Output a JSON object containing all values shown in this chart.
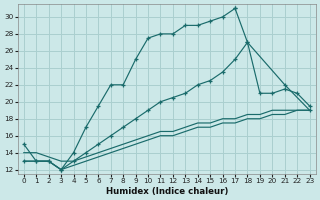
{
  "bg_color": "#cce8e8",
  "line_color": "#1a6b6b",
  "grid_color": "#aacfcf",
  "xlabel": "Humidex (Indice chaleur)",
  "xlim": [
    -0.5,
    23.5
  ],
  "ylim": [
    11.5,
    31.5
  ],
  "yticks": [
    12,
    14,
    16,
    18,
    20,
    22,
    24,
    26,
    28,
    30
  ],
  "xticks": [
    0,
    1,
    2,
    3,
    4,
    5,
    6,
    7,
    8,
    9,
    10,
    11,
    12,
    13,
    14,
    15,
    16,
    17,
    18,
    19,
    20,
    21,
    22,
    23
  ],
  "line1_x": [
    0,
    1,
    2,
    3,
    4,
    5,
    6,
    7,
    8,
    9,
    10,
    11,
    12,
    13,
    14,
    15,
    16,
    17
  ],
  "line1_y": [
    15,
    13,
    13,
    12,
    14,
    17,
    19.5,
    22,
    22,
    25,
    27.5,
    28,
    28,
    29,
    29,
    29.5,
    30,
    31
  ],
  "line2_x": [
    17,
    18,
    21,
    23
  ],
  "line2_y": [
    31,
    27,
    22,
    19
  ],
  "line3_x": [
    0,
    1,
    2,
    3,
    4,
    5,
    6,
    7,
    8,
    9,
    10,
    11,
    12,
    13,
    14,
    15,
    16,
    17,
    18,
    19,
    20,
    21,
    22,
    23
  ],
  "line3_y": [
    13,
    13,
    13,
    12,
    13,
    14,
    15,
    16,
    17,
    18,
    19,
    20,
    20.5,
    21,
    22,
    22.5,
    23.5,
    25,
    27,
    21,
    21,
    21.5,
    21,
    19.5
  ],
  "line4_x": [
    0,
    1,
    2,
    3,
    4,
    5,
    6,
    7,
    8,
    9,
    10,
    11,
    12,
    13,
    14,
    15,
    16,
    17,
    18,
    19,
    20,
    21,
    22,
    23
  ],
  "line4_y": [
    13,
    13,
    13,
    12,
    12.5,
    13,
    13.5,
    14,
    14.5,
    15,
    15.5,
    16,
    16,
    16.5,
    17,
    17,
    17.5,
    17.5,
    18,
    18,
    18.5,
    18.5,
    19,
    19
  ],
  "line5_x": [
    0,
    1,
    2,
    3,
    4,
    5,
    6,
    7,
    8,
    9,
    10,
    11,
    12,
    13,
    14,
    15,
    16,
    17,
    18,
    19,
    20,
    21,
    22,
    23
  ],
  "line5_y": [
    14,
    14,
    13.5,
    13,
    13,
    13.5,
    14,
    14.5,
    15,
    15.5,
    16,
    16.5,
    16.5,
    17,
    17.5,
    17.5,
    18,
    18,
    18.5,
    18.5,
    19,
    19,
    19,
    19
  ]
}
